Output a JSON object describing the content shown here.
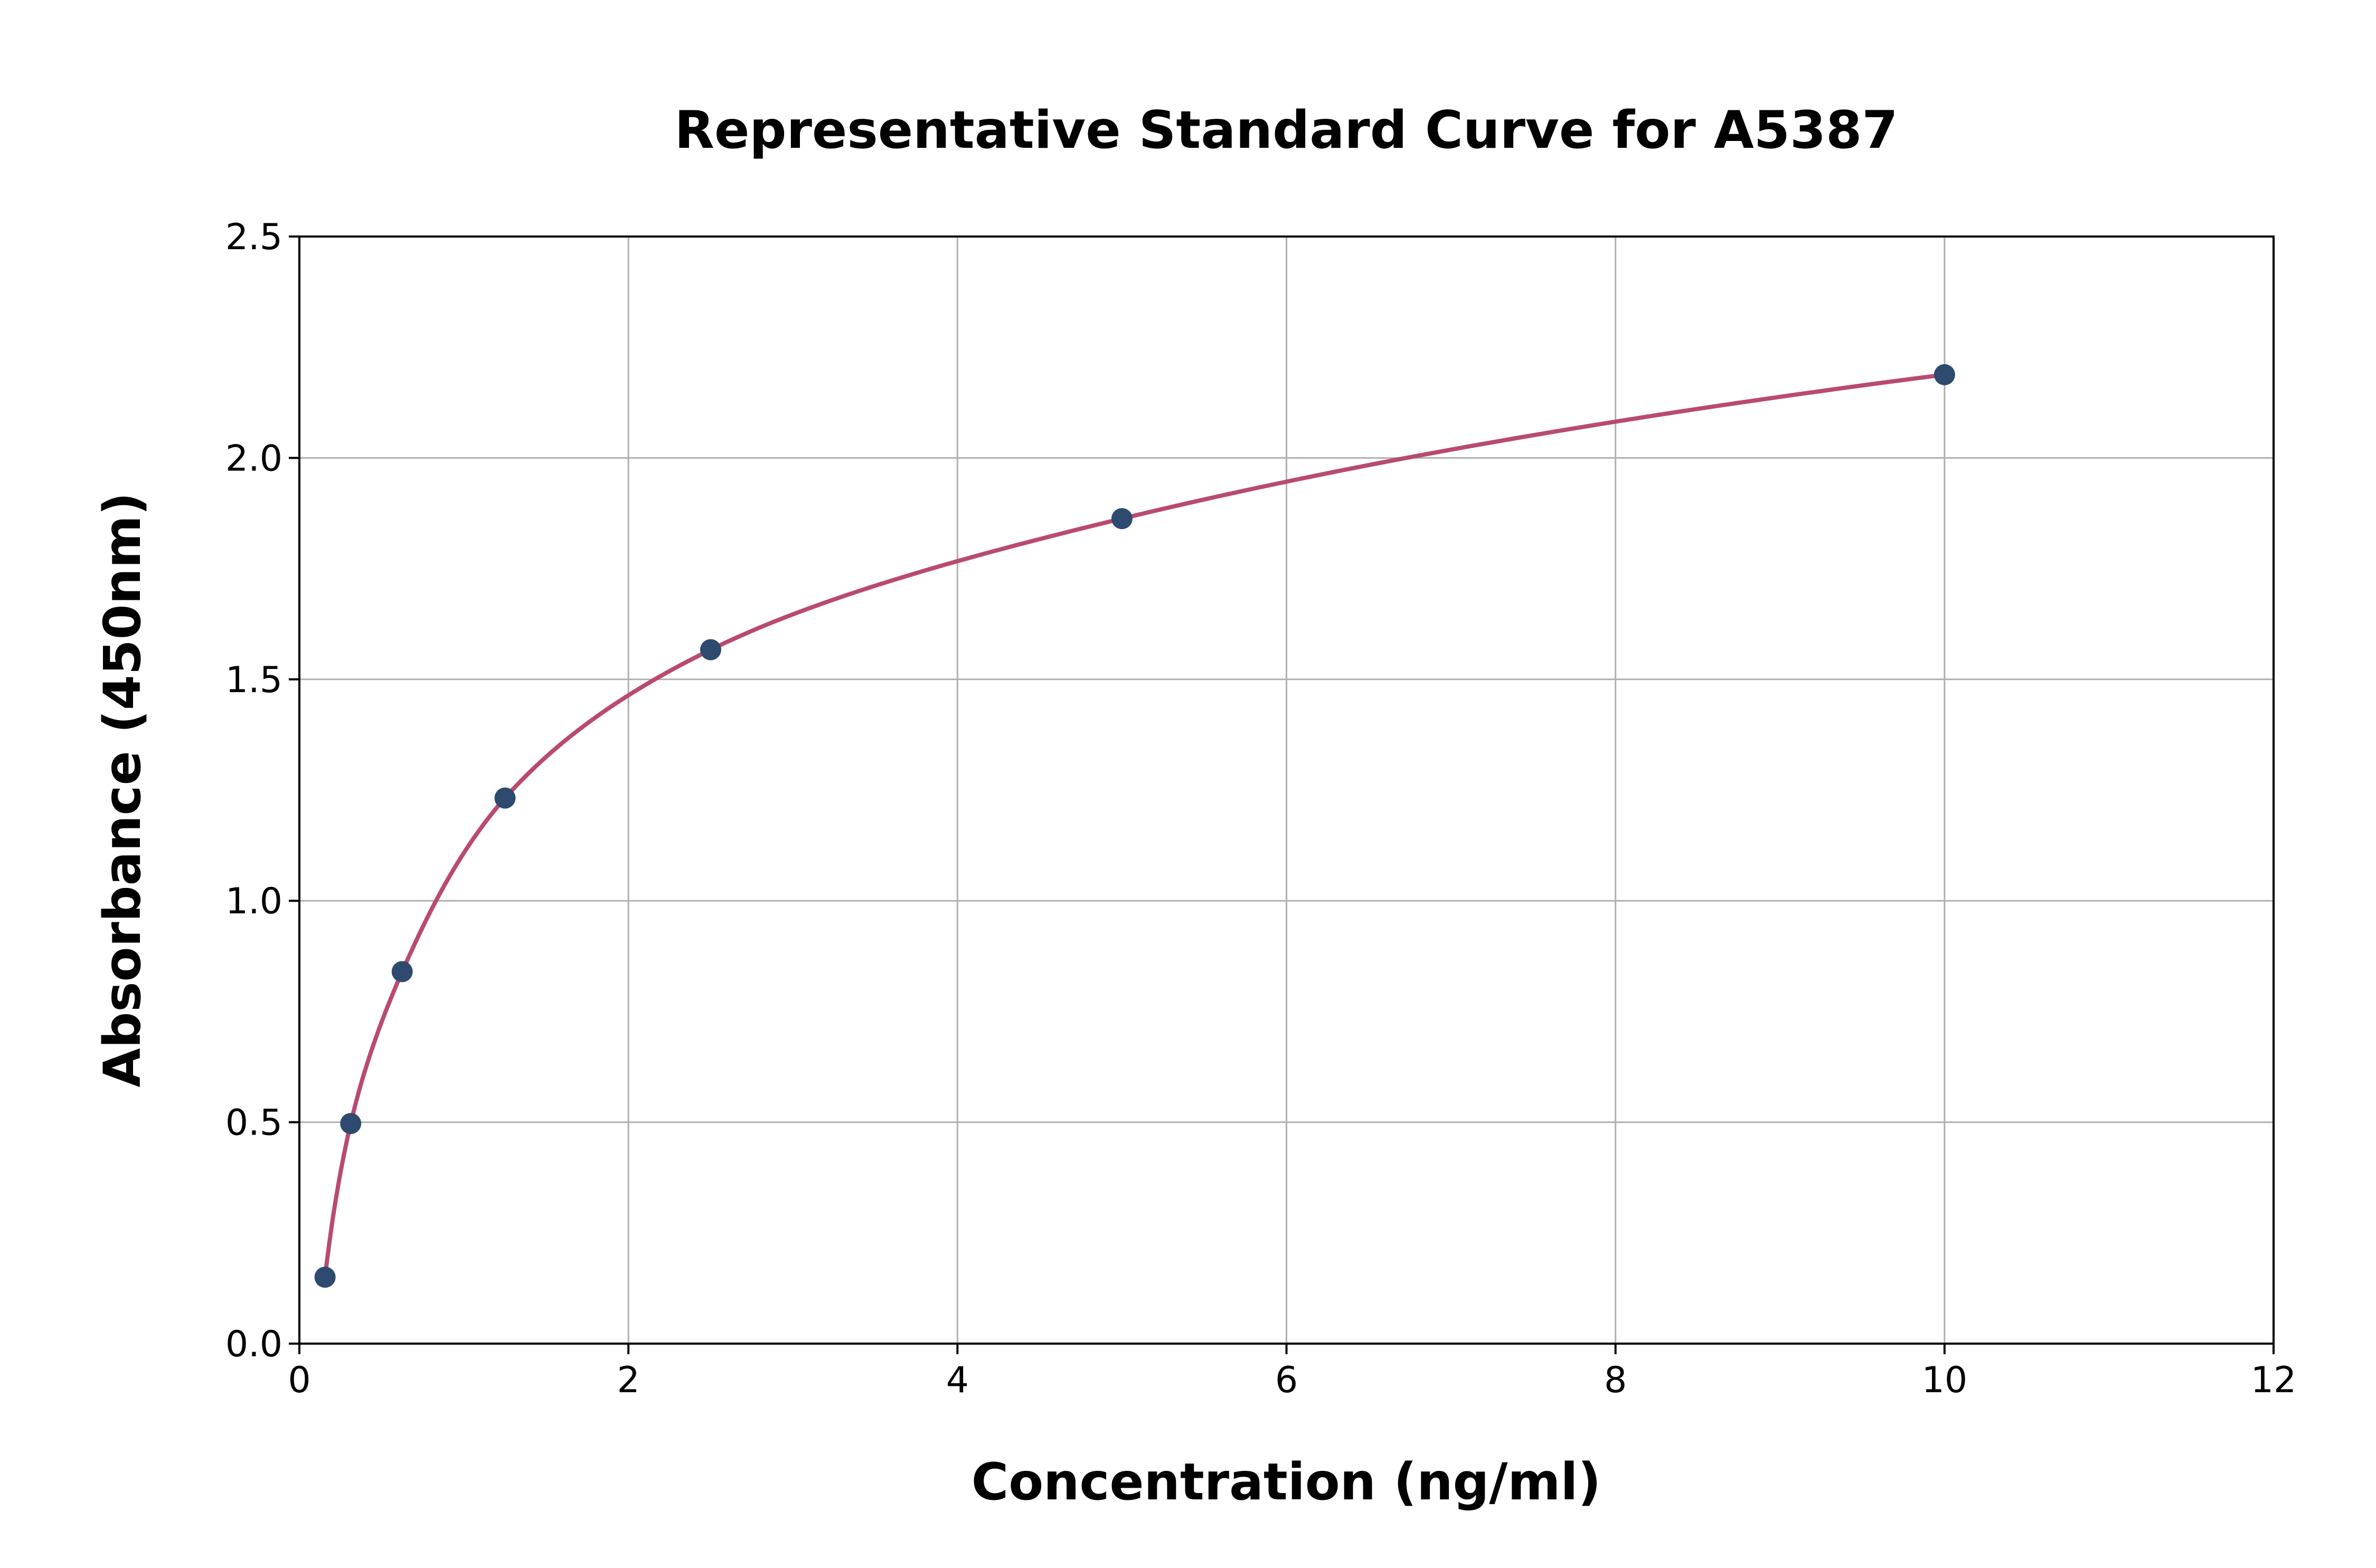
{
  "chart_data": {
    "type": "scatter",
    "title": "Representative Standard Curve for A5387",
    "xlabel": "Concentration (ng/ml)",
    "ylabel": "Absorbance (450nm)",
    "xlim": [
      0,
      12
    ],
    "ylim": [
      0,
      2.5
    ],
    "xticks": [
      0,
      2,
      4,
      6,
      8,
      10,
      12
    ],
    "xtick_labels": [
      "0",
      "2",
      "4",
      "6",
      "8",
      "10",
      "12"
    ],
    "yticks": [
      0,
      0.5,
      1.0,
      1.5,
      2.0,
      2.5
    ],
    "ytick_labels": [
      "0.0",
      "0.5",
      "1.0",
      "1.5",
      "2.0",
      "2.5"
    ],
    "grid": true,
    "points": {
      "x": [
        0.156,
        0.312,
        0.625,
        1.25,
        2.5,
        5,
        10
      ],
      "y": [
        0.15,
        0.497,
        0.84,
        1.232,
        1.567,
        1.863,
        2.188
      ]
    },
    "fit_curve": true,
    "colors": {
      "points": "#2e4a6e",
      "curve": "#b94a72",
      "grid": "#b0b0b0"
    }
  }
}
